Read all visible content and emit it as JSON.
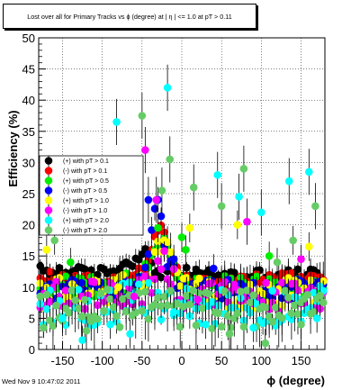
{
  "chart_data": {
    "type": "scatter",
    "title": "Lost over all for Primary Tracks vs ϕ (degree) at | η | <= 1.0 at pT > 0.11",
    "xlabel": "ϕ (degree)",
    "ylabel": "Efficiency (%)",
    "xlim": [
      -180,
      180
    ],
    "ylim": [
      0,
      50
    ],
    "x_ticks": [
      -150,
      -100,
      -50,
      0,
      50,
      100,
      150
    ],
    "y_ticks": [
      0,
      5,
      10,
      15,
      20,
      25,
      30,
      35,
      40,
      45,
      50
    ],
    "grid": true,
    "legend_placement": "upper-left",
    "series": [
      {
        "name": "(+) with pT > 0.1",
        "color": "#000000",
        "base": [
          [
            -180,
            12.5
          ],
          [
            -140,
            12.5
          ],
          [
            -110,
            12
          ],
          [
            -80,
            13
          ],
          [
            -60,
            14.5
          ],
          [
            -48,
            16
          ],
          [
            -40,
            14
          ],
          [
            -30,
            12.5
          ],
          [
            0,
            12.2
          ],
          [
            60,
            11.8
          ],
          [
            120,
            12
          ],
          [
            180,
            12
          ]
        ],
        "spread": 1.0,
        "errors": true
      },
      {
        "name": "(-) with pT > 0.1",
        "color": "#ff0000",
        "base": [
          [
            -180,
            11.5
          ],
          [
            -140,
            11.5
          ],
          [
            -100,
            11
          ],
          [
            -70,
            11.5
          ],
          [
            -45,
            12.5
          ],
          [
            -30,
            19.5
          ],
          [
            -20,
            18.5
          ],
          [
            -10,
            13
          ],
          [
            0,
            11.5
          ],
          [
            60,
            11
          ],
          [
            120,
            11.5
          ],
          [
            180,
            11.5
          ]
        ],
        "spread": 1.0,
        "errors": true
      },
      {
        "name": "(+) with pT > 0.5",
        "color": "#00ee00",
        "base": [
          [
            -180,
            10
          ],
          [
            -100,
            10
          ],
          [
            -50,
            11
          ],
          [
            -28,
            18.5
          ],
          [
            -20,
            16
          ],
          [
            0,
            10
          ],
          [
            100,
            10
          ],
          [
            180,
            10
          ]
        ],
        "spread": 1.8,
        "errors": true
      },
      {
        "name": "(-) with pT > 0.5",
        "color": "#0000ff",
        "base": [
          [
            -180,
            9.5
          ],
          [
            -100,
            9.5
          ],
          [
            -50,
            10
          ],
          [
            -30,
            23.5
          ],
          [
            -20,
            14
          ],
          [
            0,
            9.5
          ],
          [
            100,
            9.5
          ],
          [
            180,
            9.5
          ]
        ],
        "spread": 1.8,
        "errors": true
      },
      {
        "name": "(+) with pT > 1.0",
        "color": "#ffff00",
        "base": [
          [
            -180,
            9
          ],
          [
            -100,
            9
          ],
          [
            -40,
            11
          ],
          [
            -25,
            17
          ],
          [
            0,
            9
          ],
          [
            180,
            9
          ]
        ],
        "spread": 2.5,
        "errors": true
      },
      {
        "name": "(-) with pT > 1.0",
        "color": "#ff00ff",
        "base": [
          [
            -180,
            8.5
          ],
          [
            -100,
            8.5
          ],
          [
            -40,
            10
          ],
          [
            -25,
            15
          ],
          [
            0,
            8.5
          ],
          [
            180,
            8.5
          ]
        ],
        "spread": 2.5,
        "errors": true
      },
      {
        "name": "(+) with pT > 2.0",
        "color": "#00ffff",
        "base": [
          [
            -180,
            7
          ],
          [
            -100,
            7
          ],
          [
            -40,
            8
          ],
          [
            0,
            7
          ],
          [
            180,
            7
          ]
        ],
        "spread": 3.2,
        "errors": true
      },
      {
        "name": "(-) with pT > 2.0",
        "color": "#66cc66",
        "base": [
          [
            -180,
            6.5
          ],
          [
            -100,
            6.5
          ],
          [
            -40,
            7
          ],
          [
            0,
            6.5
          ],
          [
            180,
            6.5
          ]
        ],
        "spread": 3.2,
        "errors": true
      }
    ],
    "outliers": [
      {
        "color": "#00ffff",
        "points": [
          [
            -82,
            36.5
          ],
          [
            -18,
            42
          ],
          [
            45,
            28
          ],
          [
            72,
            24.5
          ],
          [
            100,
            22
          ],
          [
            135,
            27
          ],
          [
            160,
            28.5
          ],
          [
            -150,
            5
          ],
          [
            -125,
            1.5
          ],
          [
            -90,
            4
          ],
          [
            -65,
            2.5
          ],
          [
            -10,
            6
          ],
          [
            30,
            4
          ],
          [
            90,
            3.5
          ],
          [
            170,
            5
          ]
        ]
      },
      {
        "color": "#66cc66",
        "points": [
          [
            -50,
            37.5
          ],
          [
            -25,
            25.5
          ],
          [
            -15,
            30.5
          ],
          [
            15,
            26
          ],
          [
            50,
            23
          ],
          [
            78,
            29
          ],
          [
            120,
            14
          ],
          [
            140,
            17.5
          ],
          [
            168,
            23
          ],
          [
            -160,
            17.5
          ],
          [
            -120,
            3
          ],
          [
            60,
            2.5
          ],
          [
            105,
            1
          ],
          [
            150,
            4
          ]
        ]
      },
      {
        "color": "#ff00ff",
        "points": [
          [
            -46,
            32
          ],
          [
            -32,
            24
          ],
          [
            82,
            20.5
          ],
          [
            150,
            14.5
          ],
          [
            -60,
            8.5
          ],
          [
            20,
            8
          ]
        ]
      },
      {
        "color": "#ffff00",
        "points": [
          [
            -170,
            16
          ],
          [
            10,
            19.5
          ],
          [
            70,
            20
          ],
          [
            160,
            16.5
          ],
          [
            -80,
            10
          ]
        ]
      },
      {
        "color": "#00ee00",
        "points": [
          [
            -30,
            19.5
          ],
          [
            0,
            18
          ],
          [
            5,
            16
          ],
          [
            -140,
            14
          ],
          [
            110,
            15
          ]
        ]
      },
      {
        "color": "#0000ff",
        "points": [
          [
            -42,
            24
          ],
          [
            -10,
            14.5
          ],
          [
            40,
            13
          ]
        ]
      }
    ]
  },
  "footer_text": "Wed Nov  9 10:47:02 2011"
}
